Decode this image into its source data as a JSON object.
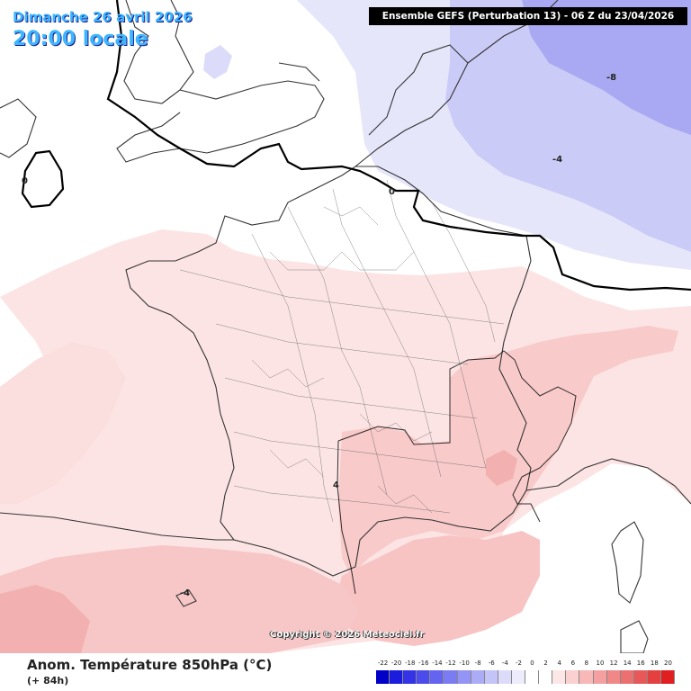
{
  "header": {
    "date": "Dimanche 26 avril 2026",
    "local_time": "20:00 locale",
    "run_info": "Ensemble GEFS  (Perturbation 13)  -  06 Z du 23/04/2026"
  },
  "footer": {
    "field_title": "Anom. Température 850hPa (°C)",
    "lead_time": "(+ 84h)",
    "copyright": "Copyright © 2026 Meteociel.fr"
  },
  "contour_labels": {
    "zero_west": "0",
    "zero_north": "0",
    "minus4_east": "-4",
    "minus8_east": "-8",
    "four_south": "4",
    "minus4_sw": "-4"
  },
  "legend": {
    "labels": [
      "-22",
      "-20",
      "-18",
      "-16",
      "-14",
      "-12",
      "-10",
      "-8",
      "-6",
      "-4",
      "-2",
      "0",
      "2",
      "4",
      "6",
      "8",
      "10",
      "12",
      "14",
      "16",
      "18",
      "20"
    ],
    "colors": [
      "#0000c8",
      "#1c1cdc",
      "#3434e6",
      "#4c4cec",
      "#6464f0",
      "#7c7cf2",
      "#9494f4",
      "#acacf6",
      "#c4c4f8",
      "#dcdcfa",
      "#ececfc",
      "#ffffff",
      "#ffffff",
      "#fde6e6",
      "#fbd0d0",
      "#f8b8b8",
      "#f4a0a0",
      "#f08888",
      "#ec7070",
      "#e85858",
      "#e44040",
      "#e02020"
    ]
  },
  "colors": {
    "cold_light": "#e4e4fb",
    "cold_mid": "#c6c6f6",
    "cold_strong": "#a8a8f3",
    "warm_light": "#fde6e6",
    "warm_mid": "#fad0d0",
    "warm_strong": "#f5b8b8",
    "zero_line": "#000000"
  }
}
